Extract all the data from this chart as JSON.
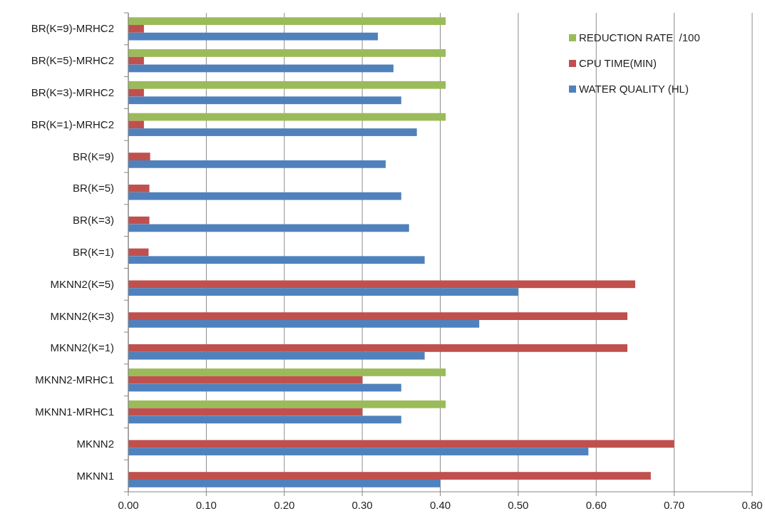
{
  "chart_data": {
    "type": "bar",
    "orientation": "horizontal",
    "categories": [
      "BR(K=9)-MRHC2",
      "BR(K=5)-MRHC2",
      "BR(K=3)-MRHC2",
      "BR(K=1)-MRHC2",
      "BR(K=9)",
      "BR(K=5)",
      "BR(K=3)",
      "BR(K=1)",
      "MKNN2(K=5)",
      "MKNN2(K=3)",
      "MKNN2(K=1)",
      "MKNN2-MRHC1",
      "MKNN1-MRHC1",
      "MKNN2",
      "MKNN1"
    ],
    "series": [
      {
        "name": "REDUCTION RATE  /100",
        "color": "#9bbb59",
        "values": [
          0.407,
          0.407,
          0.407,
          0.407,
          null,
          null,
          null,
          null,
          null,
          null,
          null,
          0.407,
          0.407,
          null,
          null
        ]
      },
      {
        "name": "CPU TIME(MIN)",
        "color": "#c0504d",
        "values": [
          0.02,
          0.02,
          0.02,
          0.02,
          0.028,
          0.027,
          0.027,
          0.026,
          0.65,
          0.64,
          0.64,
          0.3,
          0.3,
          0.7,
          0.67
        ]
      },
      {
        "name": "WATER QUALITY (HL)",
        "color": "#4f81bd",
        "values": [
          0.32,
          0.34,
          0.35,
          0.37,
          0.33,
          0.35,
          0.36,
          0.38,
          0.5,
          0.45,
          0.38,
          0.35,
          0.35,
          0.59,
          0.4
        ]
      }
    ],
    "xlim": [
      0,
      0.8
    ],
    "xticks": [
      {
        "value": 0,
        "label": "0.00"
      },
      {
        "value": 0.1,
        "label": "0.10"
      },
      {
        "value": 0.2,
        "label": "0.20"
      },
      {
        "value": 0.3,
        "label": "0.30"
      },
      {
        "value": 0.4,
        "label": "0.40"
      },
      {
        "value": 0.5,
        "label": "0.50"
      },
      {
        "value": 0.6,
        "label": "0.60"
      },
      {
        "value": 0.7,
        "label": "0.70"
      },
      {
        "value": 0.8,
        "label": "0.80"
      }
    ],
    "grid": "x",
    "legend": "top right"
  }
}
